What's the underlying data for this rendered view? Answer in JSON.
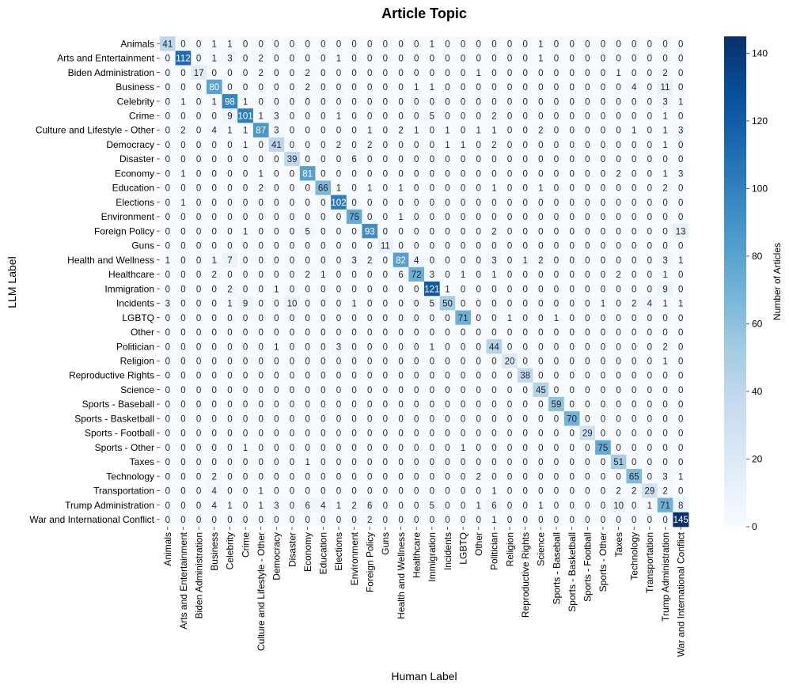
{
  "chart_data": {
    "type": "heatmap",
    "title": "Article Topic",
    "xlabel": "Human Label",
    "ylabel": "LLM Label",
    "colorbar_label": "Number of Articles",
    "colorbar_ticks": [
      0,
      20,
      40,
      60,
      80,
      100,
      120,
      140
    ],
    "vmin": 0,
    "vmax": 145,
    "colormap": [
      "#f7fbff",
      "#deebf7",
      "#c6dbef",
      "#9ecae1",
      "#6baed6",
      "#4292c6",
      "#2171b5",
      "#08519c",
      "#08306b"
    ],
    "categories": [
      "Animals",
      "Arts and Entertainment",
      "Biden Administration",
      "Business",
      "Celebrity",
      "Crime",
      "Culture and Lifestyle - Other",
      "Democracy",
      "Disaster",
      "Economy",
      "Education",
      "Elections",
      "Environment",
      "Foreign Policy",
      "Guns",
      "Health and Wellness",
      "Healthcare",
      "Immigration",
      "Incidents",
      "LGBTQ",
      "Other",
      "Politician",
      "Religion",
      "Reproductive Rights",
      "Science",
      "Sports - Baseball",
      "Sports - Basketball",
      "Sports - Football",
      "Sports - Other",
      "Taxes",
      "Technology",
      "Transportation",
      "Trump Administration",
      "War and International Conflict"
    ],
    "matrix": [
      [
        41,
        0,
        0,
        1,
        1,
        0,
        0,
        0,
        0,
        0,
        0,
        0,
        0,
        0,
        0,
        0,
        0,
        1,
        0,
        0,
        0,
        0,
        0,
        0,
        1,
        0,
        0,
        0,
        0,
        0,
        0,
        0,
        0,
        0
      ],
      [
        0,
        112,
        0,
        1,
        3,
        0,
        2,
        0,
        0,
        0,
        0,
        1,
        0,
        0,
        0,
        0,
        0,
        0,
        0,
        0,
        0,
        0,
        0,
        0,
        1,
        0,
        0,
        0,
        0,
        0,
        0,
        0,
        0,
        0
      ],
      [
        0,
        0,
        17,
        0,
        0,
        0,
        2,
        0,
        0,
        2,
        0,
        0,
        0,
        0,
        0,
        0,
        0,
        0,
        0,
        0,
        1,
        0,
        0,
        0,
        0,
        0,
        0,
        0,
        0,
        1,
        0,
        0,
        2,
        0
      ],
      [
        0,
        0,
        0,
        80,
        0,
        0,
        0,
        0,
        0,
        2,
        0,
        0,
        0,
        0,
        0,
        0,
        1,
        1,
        0,
        0,
        0,
        0,
        0,
        0,
        0,
        0,
        0,
        0,
        0,
        0,
        4,
        0,
        11,
        0
      ],
      [
        0,
        1,
        0,
        1,
        98,
        1,
        0,
        0,
        0,
        0,
        0,
        0,
        0,
        0,
        0,
        0,
        0,
        0,
        0,
        0,
        0,
        0,
        0,
        0,
        0,
        0,
        0,
        0,
        0,
        0,
        0,
        0,
        3,
        1
      ],
      [
        0,
        0,
        0,
        0,
        9,
        101,
        1,
        3,
        0,
        0,
        0,
        1,
        0,
        0,
        0,
        0,
        0,
        5,
        0,
        0,
        0,
        2,
        0,
        0,
        0,
        0,
        0,
        0,
        0,
        0,
        0,
        0,
        1,
        0
      ],
      [
        0,
        2,
        0,
        4,
        1,
        1,
        87,
        3,
        0,
        0,
        0,
        0,
        0,
        1,
        0,
        2,
        1,
        0,
        1,
        0,
        1,
        1,
        0,
        0,
        2,
        0,
        0,
        0,
        0,
        0,
        1,
        0,
        1,
        3
      ],
      [
        0,
        0,
        0,
        0,
        0,
        1,
        0,
        41,
        0,
        0,
        0,
        2,
        0,
        2,
        0,
        0,
        0,
        0,
        1,
        1,
        0,
        2,
        0,
        0,
        0,
        0,
        0,
        0,
        0,
        0,
        0,
        0,
        1,
        0
      ],
      [
        0,
        0,
        0,
        0,
        0,
        0,
        0,
        0,
        39,
        0,
        0,
        0,
        6,
        0,
        0,
        0,
        0,
        0,
        0,
        0,
        0,
        0,
        0,
        0,
        0,
        0,
        0,
        0,
        0,
        0,
        0,
        0,
        0,
        0
      ],
      [
        0,
        1,
        0,
        0,
        0,
        0,
        1,
        0,
        0,
        81,
        0,
        0,
        0,
        0,
        0,
        0,
        0,
        0,
        0,
        0,
        0,
        0,
        0,
        0,
        0,
        0,
        0,
        0,
        0,
        2,
        0,
        0,
        1,
        3
      ],
      [
        0,
        0,
        0,
        0,
        0,
        0,
        2,
        0,
        0,
        0,
        66,
        1,
        0,
        1,
        0,
        1,
        0,
        0,
        0,
        0,
        0,
        1,
        0,
        0,
        1,
        0,
        0,
        0,
        0,
        0,
        0,
        0,
        2,
        0
      ],
      [
        0,
        1,
        0,
        0,
        0,
        0,
        0,
        0,
        0,
        0,
        0,
        102,
        0,
        0,
        0,
        0,
        0,
        0,
        0,
        0,
        0,
        0,
        0,
        0,
        0,
        0,
        0,
        0,
        0,
        0,
        0,
        0,
        0,
        0
      ],
      [
        0,
        0,
        0,
        0,
        0,
        0,
        0,
        0,
        0,
        0,
        0,
        0,
        75,
        0,
        0,
        1,
        0,
        0,
        0,
        0,
        0,
        0,
        0,
        0,
        0,
        0,
        0,
        0,
        0,
        0,
        0,
        0,
        0,
        0
      ],
      [
        0,
        0,
        0,
        0,
        0,
        1,
        0,
        0,
        0,
        5,
        0,
        0,
        0,
        93,
        0,
        0,
        0,
        0,
        0,
        0,
        0,
        2,
        0,
        0,
        0,
        0,
        0,
        0,
        0,
        0,
        0,
        0,
        0,
        13
      ],
      [
        0,
        0,
        0,
        0,
        0,
        0,
        0,
        0,
        0,
        0,
        0,
        0,
        0,
        0,
        11,
        0,
        0,
        0,
        0,
        0,
        0,
        0,
        0,
        0,
        0,
        0,
        0,
        0,
        0,
        0,
        0,
        0,
        0,
        0
      ],
      [
        1,
        0,
        0,
        1,
        7,
        0,
        0,
        0,
        0,
        0,
        0,
        0,
        3,
        2,
        0,
        82,
        4,
        0,
        0,
        0,
        0,
        3,
        0,
        1,
        2,
        0,
        0,
        0,
        0,
        0,
        0,
        0,
        3,
        1
      ],
      [
        0,
        0,
        0,
        2,
        0,
        0,
        0,
        0,
        0,
        2,
        1,
        0,
        0,
        0,
        0,
        6,
        72,
        3,
        0,
        1,
        0,
        1,
        0,
        0,
        0,
        0,
        0,
        0,
        0,
        2,
        0,
        0,
        1,
        0
      ],
      [
        0,
        0,
        0,
        0,
        2,
        0,
        0,
        1,
        0,
        0,
        0,
        0,
        0,
        0,
        0,
        0,
        0,
        121,
        1,
        0,
        0,
        0,
        0,
        0,
        0,
        0,
        0,
        0,
        0,
        0,
        0,
        0,
        9,
        0
      ],
      [
        3,
        0,
        0,
        0,
        1,
        9,
        0,
        0,
        10,
        0,
        0,
        0,
        1,
        0,
        0,
        0,
        0,
        5,
        50,
        0,
        0,
        0,
        0,
        0,
        0,
        0,
        0,
        0,
        1,
        0,
        2,
        4,
        1,
        1
      ],
      [
        0,
        0,
        0,
        0,
        0,
        0,
        0,
        0,
        0,
        0,
        0,
        0,
        0,
        0,
        0,
        0,
        0,
        0,
        0,
        71,
        0,
        0,
        1,
        0,
        0,
        1,
        0,
        0,
        0,
        0,
        0,
        0,
        0,
        0
      ],
      [
        0,
        0,
        0,
        0,
        0,
        0,
        0,
        0,
        0,
        0,
        0,
        0,
        0,
        0,
        0,
        0,
        0,
        0,
        0,
        0,
        0,
        0,
        0,
        0,
        0,
        0,
        0,
        0,
        0,
        0,
        0,
        0,
        0,
        0
      ],
      [
        0,
        0,
        0,
        0,
        0,
        0,
        0,
        1,
        0,
        0,
        0,
        3,
        0,
        0,
        0,
        0,
        0,
        1,
        0,
        0,
        0,
        44,
        0,
        0,
        0,
        0,
        0,
        0,
        0,
        0,
        0,
        0,
        2,
        0
      ],
      [
        0,
        0,
        0,
        0,
        0,
        0,
        0,
        0,
        0,
        0,
        0,
        0,
        0,
        0,
        0,
        0,
        0,
        0,
        0,
        0,
        0,
        0,
        20,
        0,
        0,
        0,
        0,
        0,
        0,
        0,
        0,
        0,
        1,
        0
      ],
      [
        0,
        0,
        0,
        0,
        0,
        0,
        0,
        0,
        0,
        0,
        0,
        0,
        0,
        0,
        0,
        0,
        0,
        0,
        0,
        0,
        0,
        0,
        0,
        38,
        0,
        0,
        0,
        0,
        0,
        0,
        0,
        0,
        0,
        0
      ],
      [
        0,
        0,
        0,
        0,
        0,
        0,
        0,
        0,
        0,
        0,
        0,
        0,
        0,
        0,
        0,
        0,
        0,
        0,
        0,
        0,
        0,
        0,
        0,
        0,
        45,
        0,
        0,
        0,
        0,
        0,
        0,
        0,
        0,
        0
      ],
      [
        0,
        0,
        0,
        0,
        0,
        0,
        0,
        0,
        0,
        0,
        0,
        0,
        0,
        0,
        0,
        0,
        0,
        0,
        0,
        0,
        0,
        0,
        0,
        0,
        0,
        59,
        0,
        0,
        0,
        0,
        0,
        0,
        0,
        0
      ],
      [
        0,
        0,
        0,
        0,
        0,
        0,
        0,
        0,
        0,
        0,
        0,
        0,
        0,
        0,
        0,
        0,
        0,
        0,
        0,
        0,
        0,
        0,
        0,
        0,
        0,
        0,
        70,
        0,
        0,
        0,
        0,
        0,
        0,
        0
      ],
      [
        0,
        0,
        0,
        0,
        0,
        0,
        0,
        0,
        0,
        0,
        0,
        0,
        0,
        0,
        0,
        0,
        0,
        0,
        0,
        0,
        0,
        0,
        0,
        0,
        0,
        0,
        0,
        29,
        0,
        0,
        0,
        0,
        0,
        0
      ],
      [
        0,
        0,
        0,
        0,
        0,
        1,
        0,
        0,
        0,
        0,
        0,
        0,
        0,
        0,
        0,
        0,
        0,
        0,
        0,
        1,
        0,
        0,
        0,
        0,
        0,
        0,
        0,
        0,
        75,
        0,
        0,
        0,
        0,
        0
      ],
      [
        0,
        0,
        0,
        0,
        0,
        0,
        0,
        0,
        0,
        1,
        0,
        0,
        0,
        0,
        0,
        0,
        0,
        0,
        0,
        0,
        0,
        0,
        0,
        0,
        0,
        0,
        0,
        0,
        0,
        51,
        0,
        0,
        0,
        0
      ],
      [
        0,
        0,
        0,
        2,
        0,
        0,
        0,
        0,
        0,
        0,
        0,
        0,
        0,
        0,
        0,
        0,
        0,
        0,
        0,
        0,
        2,
        0,
        0,
        0,
        0,
        0,
        0,
        0,
        0,
        0,
        65,
        0,
        3,
        1
      ],
      [
        0,
        0,
        0,
        4,
        0,
        0,
        1,
        0,
        0,
        0,
        0,
        0,
        0,
        0,
        0,
        0,
        0,
        0,
        0,
        0,
        0,
        1,
        0,
        0,
        0,
        0,
        0,
        0,
        0,
        2,
        2,
        29,
        2,
        0
      ],
      [
        0,
        0,
        0,
        4,
        1,
        0,
        1,
        3,
        0,
        6,
        4,
        1,
        2,
        6,
        0,
        0,
        0,
        5,
        0,
        0,
        1,
        6,
        0,
        0,
        1,
        0,
        0,
        0,
        0,
        10,
        0,
        1,
        71,
        8
      ],
      [
        0,
        0,
        0,
        0,
        0,
        0,
        0,
        0,
        0,
        0,
        0,
        0,
        0,
        2,
        0,
        0,
        0,
        0,
        0,
        0,
        0,
        1,
        0,
        0,
        0,
        0,
        0,
        0,
        0,
        0,
        0,
        0,
        0,
        145
      ]
    ]
  }
}
